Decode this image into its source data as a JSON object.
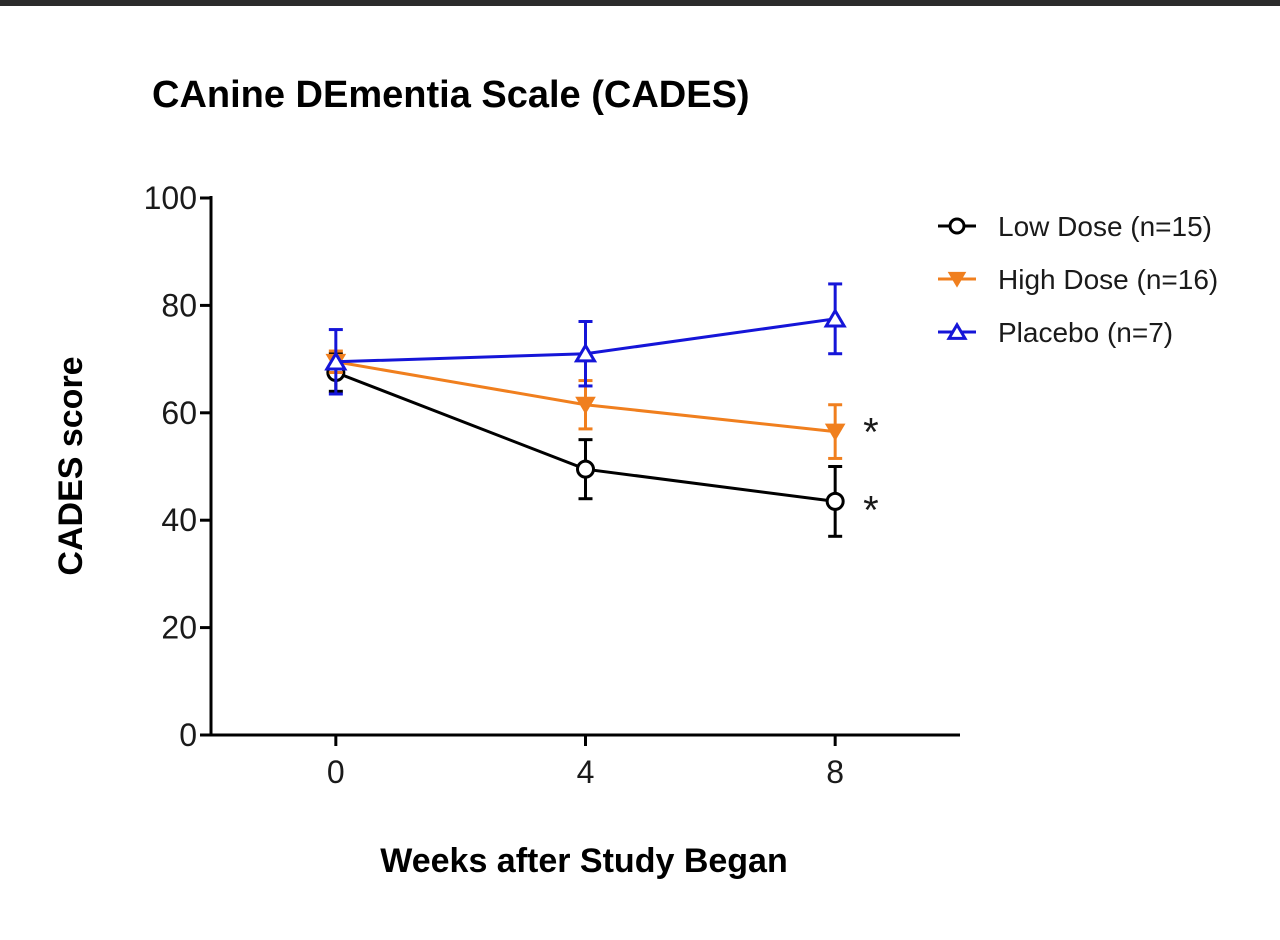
{
  "chart_data": {
    "type": "line",
    "title": "CAnine DEmentia Scale (CADES)",
    "xlabel": "Weeks after Study Began",
    "ylabel": "CADES score",
    "x": [
      0,
      4,
      8
    ],
    "x_ticks": [
      "0",
      "4",
      "8"
    ],
    "y_ticks": [
      "0",
      "20",
      "40",
      "60",
      "80",
      "100"
    ],
    "xlim": [
      -2,
      10
    ],
    "ylim": [
      0,
      100
    ],
    "grid": false,
    "legend_position": "top-right",
    "series": [
      {
        "name": "Low Dose (n=15)",
        "color": "#000000",
        "marker": "circle",
        "values": [
          67.5,
          49.5,
          43.5
        ],
        "err": [
          3.5,
          5.5,
          6.5
        ]
      },
      {
        "name": "High Dose (n=16)",
        "color": "#f07f1e",
        "marker": "triangle-down",
        "values": [
          69.5,
          61.5,
          56.5
        ],
        "err": [
          2,
          4.5,
          5
        ]
      },
      {
        "name": "Placebo (n=7)",
        "color": "#1515d8",
        "marker": "triangle-up",
        "values": [
          69.5,
          71,
          77.5
        ],
        "err": [
          6,
          6,
          6.5
        ]
      }
    ],
    "annotations": [
      {
        "text": "*",
        "x": 8,
        "y": 58
      },
      {
        "text": "*",
        "x": 8,
        "y": 43.5
      }
    ]
  }
}
